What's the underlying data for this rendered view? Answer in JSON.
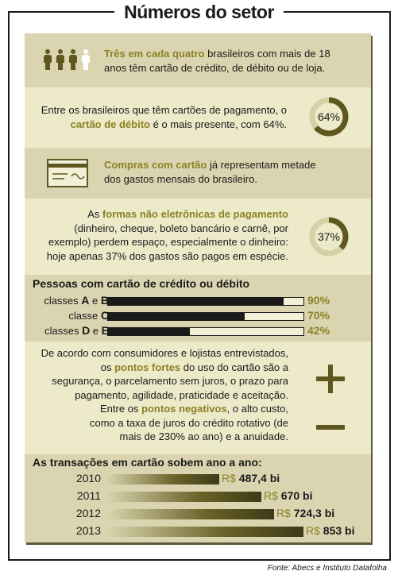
{
  "title": "Números do setor",
  "colors": {
    "accent": "#8c8124",
    "band_dark": "#dad5b0",
    "band_light": "#eceac9",
    "ink": "#1a1a1a",
    "sign": "#5f5620"
  },
  "block1": {
    "icon": "people-icon",
    "highlight": "Três em cada quatro",
    "text_a": " brasileiros com mais de 18",
    "text_b": "anos têm cartão de crédito, de débito ou de loja."
  },
  "block2": {
    "line1": "Entre os brasileiros que têm cartões de pagamento, o",
    "highlight": "cartão de débito",
    "line2_rest": " é o mais presente, com 64%.",
    "donut_label": "64%",
    "donut_value": 64
  },
  "block3": {
    "icon": "receipt-icon",
    "highlight": "Compras com cartão",
    "text_a": " já representam metade",
    "text_b": "dos gastos mensais do brasileiro."
  },
  "block4": {
    "lead": "As ",
    "highlight": "formas não eletrônicas de pagamento",
    "line2": "(dinheiro, cheque, boleto bancário e carnê, por",
    "line3": "exemplo) perdem espaço, especialmente o dinheiro:",
    "line4": "hoje apenas 37% dos gastos são pagos em espécie.",
    "donut_label": "37%",
    "donut_value": 37
  },
  "cards_section": {
    "title": "Pessoas com cartão de crédito ou débito",
    "rows": [
      {
        "prefix": "classes ",
        "class_a": "A",
        "mid": " e ",
        "class_b": "B",
        "value": 90,
        "label": "90%"
      },
      {
        "prefix": "classe ",
        "class_a": "C",
        "mid": "",
        "class_b": "",
        "value": 70,
        "label": "70%"
      },
      {
        "prefix": "classes ",
        "class_a": "D",
        "mid": " e ",
        "class_b": "E",
        "value": 42,
        "label": "42%"
      }
    ]
  },
  "opinions": {
    "line1": "De acordo com consumidores e lojistas entrevistados,",
    "line2_a": "os ",
    "line2_hl": "pontos fortes",
    "line2_b": " do uso do cartão são a",
    "line3": "segurança, o parcelamento sem juros, o prazo para",
    "line4": "pagamento, agilidade, praticidade e aceitação.",
    "line5_a": "Entre os ",
    "line5_hl": "pontos negativos",
    "line5_b": ", o alto custo,",
    "line6": "como a taxa de juros do crédito rotativo (de",
    "line7": "mais de 230% ao ano) e a anuidade.",
    "plus_icon": "plus-icon",
    "minus_icon": "minus-icon"
  },
  "transactions": {
    "title": "As transações em cartão sobem ano a ano:",
    "currency": "R$"
  },
  "chart_data": [
    {
      "type": "bar",
      "title": "Pessoas com cartão de crédito ou débito",
      "categories": [
        "classes A e B",
        "classe C",
        "classes D e E"
      ],
      "values": [
        90,
        70,
        42
      ],
      "unit": "%",
      "ylim": [
        0,
        100
      ]
    },
    {
      "type": "bar",
      "title": "As transações em cartão sobem ano a ano:",
      "categories": [
        "2010",
        "2011",
        "2012",
        "2013"
      ],
      "values": [
        487.4,
        670,
        724.3,
        853
      ],
      "labels": [
        "487,4 bi",
        "670 bi",
        "724,3 bi",
        "853 bi"
      ],
      "unit": "R$ bi"
    }
  ],
  "source": "Fonte: Abecs e Instituto Datafolha"
}
